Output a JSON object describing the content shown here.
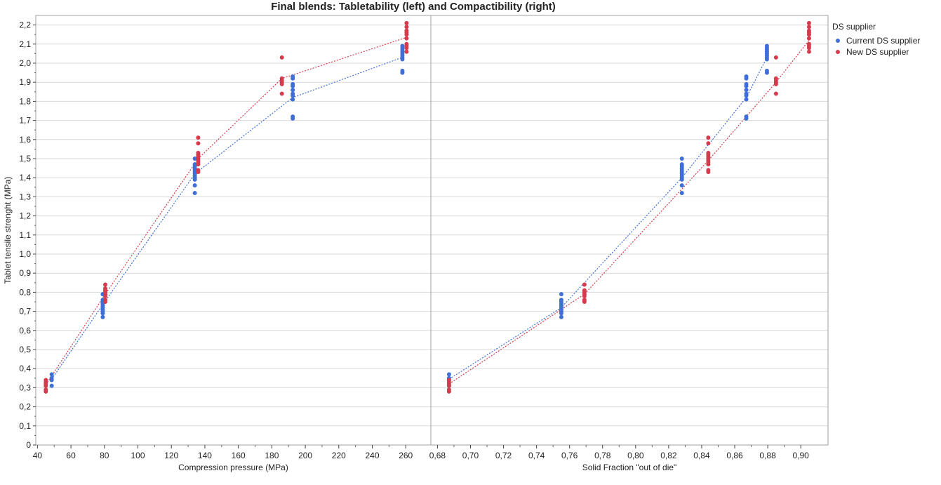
{
  "colors": {
    "current": "#3f6fd6",
    "new": "#d43c4e",
    "grid": "#d9d9d9",
    "frame": "#a0a0a0"
  },
  "chart_data": {
    "title": "Final blends: Tabletability (left) and Compactibility (right)",
    "legend": {
      "title": "DS supplier",
      "placement": "right",
      "entries": [
        {
          "key": "current",
          "label": "Current DS supplier"
        },
        {
          "key": "new",
          "label": "New DS supplier"
        }
      ]
    },
    "ylabel": "Tablet tensile strenght (MPa)",
    "ylim": [
      0,
      2.25
    ],
    "yticks": [
      {
        "v": 0,
        "t": "0"
      },
      {
        "v": 0.1,
        "t": "0,1"
      },
      {
        "v": 0.2,
        "t": "0,2"
      },
      {
        "v": 0.3,
        "t": "0,3"
      },
      {
        "v": 0.4,
        "t": "0,4"
      },
      {
        "v": 0.5,
        "t": "0,5"
      },
      {
        "v": 0.6,
        "t": "0,6"
      },
      {
        "v": 0.7,
        "t": "0,7"
      },
      {
        "v": 0.8,
        "t": "0,8"
      },
      {
        "v": 0.9,
        "t": "0,9"
      },
      {
        "v": 1.0,
        "t": "1,0"
      },
      {
        "v": 1.1,
        "t": "1,1"
      },
      {
        "v": 1.2,
        "t": "1,2"
      },
      {
        "v": 1.3,
        "t": "1,3"
      },
      {
        "v": 1.4,
        "t": "1,4"
      },
      {
        "v": 1.5,
        "t": "1,5"
      },
      {
        "v": 1.6,
        "t": "1,6"
      },
      {
        "v": 1.7,
        "t": "1,7"
      },
      {
        "v": 1.8,
        "t": "1,8"
      },
      {
        "v": 1.9,
        "t": "1,9"
      },
      {
        "v": 2.0,
        "t": "2,0"
      },
      {
        "v": 2.1,
        "t": "2,1"
      },
      {
        "v": 2.2,
        "t": "2,2"
      }
    ],
    "panels": [
      {
        "name": "tabletability",
        "type": "scatter",
        "xlabel": "Compression pressure (MPa)",
        "xlim": [
          39,
          275
        ],
        "xticks": [
          {
            "v": 40,
            "t": "40"
          },
          {
            "v": 60,
            "t": "60"
          },
          {
            "v": 80,
            "t": "80"
          },
          {
            "v": 100,
            "t": "100"
          },
          {
            "v": 120,
            "t": "120"
          },
          {
            "v": 140,
            "t": "140"
          },
          {
            "v": 160,
            "t": "160"
          },
          {
            "v": 180,
            "t": "180"
          },
          {
            "v": 200,
            "t": "200"
          },
          {
            "v": 220,
            "t": "220"
          },
          {
            "v": 240,
            "t": "240"
          },
          {
            "v": 260,
            "t": "260"
          }
        ],
        "series": [
          {
            "key": "current",
            "name": "Current DS supplier",
            "points": [
              [
                48.5,
                0.31
              ],
              [
                48.5,
                0.34
              ],
              [
                48.5,
                0.35
              ],
              [
                48.5,
                0.37
              ],
              [
                79,
                0.67
              ],
              [
                79,
                0.69
              ],
              [
                79,
                0.7
              ],
              [
                79,
                0.71
              ],
              [
                79,
                0.72
              ],
              [
                79,
                0.73
              ],
              [
                79,
                0.74
              ],
              [
                79,
                0.75
              ],
              [
                79,
                0.76
              ],
              [
                79,
                0.79
              ],
              [
                134,
                1.32
              ],
              [
                134,
                1.36
              ],
              [
                134,
                1.39
              ],
              [
                134,
                1.4
              ],
              [
                134,
                1.41
              ],
              [
                134,
                1.42
              ],
              [
                134,
                1.43
              ],
              [
                134,
                1.44
              ],
              [
                134,
                1.45
              ],
              [
                134,
                1.46
              ],
              [
                134,
                1.47
              ],
              [
                134,
                1.5
              ],
              [
                192.5,
                1.71
              ],
              [
                192.5,
                1.72
              ],
              [
                192.5,
                1.81
              ],
              [
                192.5,
                1.83
              ],
              [
                192.5,
                1.84
              ],
              [
                192.5,
                1.86
              ],
              [
                192.5,
                1.88
              ],
              [
                192.5,
                1.89
              ],
              [
                192.5,
                1.92
              ],
              [
                192.5,
                1.93
              ],
              [
                258,
                1.95
              ],
              [
                258,
                1.96
              ],
              [
                258,
                2.02
              ],
              [
                258,
                2.03
              ],
              [
                258,
                2.04
              ],
              [
                258,
                2.05
              ],
              [
                258,
                2.06
              ],
              [
                258,
                2.07
              ],
              [
                258,
                2.08
              ],
              [
                258,
                2.09
              ]
            ],
            "trend": [
              [
                48.5,
                0.345
              ],
              [
                79,
                0.735
              ],
              [
                134,
                1.42
              ],
              [
                192.5,
                1.82
              ],
              [
                258,
                2.03
              ]
            ]
          },
          {
            "key": "new",
            "name": "New DS supplier",
            "points": [
              [
                45,
                0.28
              ],
              [
                45,
                0.29
              ],
              [
                45,
                0.31
              ],
              [
                45,
                0.32
              ],
              [
                45,
                0.33
              ],
              [
                45,
                0.34
              ],
              [
                80.5,
                0.75
              ],
              [
                80.5,
                0.76
              ],
              [
                80.5,
                0.78
              ],
              [
                80.5,
                0.79
              ],
              [
                80.5,
                0.8
              ],
              [
                80.5,
                0.81
              ],
              [
                80.5,
                0.82
              ],
              [
                80.5,
                0.84
              ],
              [
                136,
                1.43
              ],
              [
                136,
                1.44
              ],
              [
                136,
                1.47
              ],
              [
                136,
                1.48
              ],
              [
                136,
                1.49
              ],
              [
                136,
                1.5
              ],
              [
                136,
                1.51
              ],
              [
                136,
                1.52
              ],
              [
                136,
                1.53
              ],
              [
                136,
                1.58
              ],
              [
                136,
                1.61
              ],
              [
                186,
                1.84
              ],
              [
                186,
                1.89
              ],
              [
                186,
                1.9
              ],
              [
                186,
                1.91
              ],
              [
                186,
                1.92
              ],
              [
                186,
                2.03
              ],
              [
                260.5,
                2.06
              ],
              [
                260.5,
                2.08
              ],
              [
                260.5,
                2.09
              ],
              [
                260.5,
                2.1
              ],
              [
                260.5,
                2.13
              ],
              [
                260.5,
                2.15
              ],
              [
                260.5,
                2.16
              ],
              [
                260.5,
                2.17
              ],
              [
                260.5,
                2.19
              ],
              [
                260.5,
                2.21
              ]
            ],
            "trend": [
              [
                45,
                0.315
              ],
              [
                80.5,
                0.79
              ],
              [
                136,
                1.5
              ],
              [
                186,
                1.92
              ],
              [
                260.5,
                2.135
              ]
            ]
          }
        ]
      },
      {
        "name": "compactibility",
        "type": "scatter",
        "xlabel": "Solid Fraction \"out of die\"",
        "xlim": [
          0.676,
          0.9165
        ],
        "xticks": [
          {
            "v": 0.68,
            "t": "0,68"
          },
          {
            "v": 0.7,
            "t": "0,70"
          },
          {
            "v": 0.72,
            "t": "0,72"
          },
          {
            "v": 0.74,
            "t": "0,74"
          },
          {
            "v": 0.76,
            "t": "0,76"
          },
          {
            "v": 0.78,
            "t": "0,78"
          },
          {
            "v": 0.8,
            "t": "0,80"
          },
          {
            "v": 0.82,
            "t": "0,82"
          },
          {
            "v": 0.84,
            "t": "0,84"
          },
          {
            "v": 0.86,
            "t": "0,86"
          },
          {
            "v": 0.88,
            "t": "0,88"
          },
          {
            "v": 0.9,
            "t": "0,90"
          }
        ],
        "series": [
          {
            "key": "current",
            "name": "Current DS supplier",
            "points": [
              [
                0.687,
                0.31
              ],
              [
                0.687,
                0.34
              ],
              [
                0.687,
                0.35
              ],
              [
                0.687,
                0.37
              ],
              [
                0.755,
                0.67
              ],
              [
                0.755,
                0.69
              ],
              [
                0.755,
                0.7
              ],
              [
                0.755,
                0.71
              ],
              [
                0.755,
                0.72
              ],
              [
                0.755,
                0.73
              ],
              [
                0.755,
                0.74
              ],
              [
                0.755,
                0.75
              ],
              [
                0.755,
                0.76
              ],
              [
                0.755,
                0.79
              ],
              [
                0.828,
                1.32
              ],
              [
                0.828,
                1.36
              ],
              [
                0.828,
                1.39
              ],
              [
                0.828,
                1.4
              ],
              [
                0.828,
                1.41
              ],
              [
                0.828,
                1.42
              ],
              [
                0.828,
                1.43
              ],
              [
                0.828,
                1.44
              ],
              [
                0.828,
                1.45
              ],
              [
                0.828,
                1.46
              ],
              [
                0.828,
                1.47
              ],
              [
                0.828,
                1.5
              ],
              [
                0.867,
                1.71
              ],
              [
                0.867,
                1.72
              ],
              [
                0.867,
                1.81
              ],
              [
                0.867,
                1.83
              ],
              [
                0.867,
                1.84
              ],
              [
                0.867,
                1.86
              ],
              [
                0.867,
                1.88
              ],
              [
                0.867,
                1.89
              ],
              [
                0.867,
                1.92
              ],
              [
                0.867,
                1.93
              ],
              [
                0.8795,
                1.95
              ],
              [
                0.8795,
                1.96
              ],
              [
                0.8795,
                2.02
              ],
              [
                0.8795,
                2.03
              ],
              [
                0.8795,
                2.04
              ],
              [
                0.8795,
                2.05
              ],
              [
                0.8795,
                2.06
              ],
              [
                0.8795,
                2.07
              ],
              [
                0.8795,
                2.08
              ],
              [
                0.8795,
                2.09
              ]
            ],
            "trend": [
              [
                0.687,
                0.345
              ],
              [
                0.755,
                0.72
              ],
              [
                0.828,
                1.4
              ],
              [
                0.867,
                1.82
              ],
              [
                0.8795,
                2.03
              ]
            ]
          },
          {
            "key": "new",
            "name": "New DS supplier",
            "points": [
              [
                0.687,
                0.28
              ],
              [
                0.687,
                0.29
              ],
              [
                0.687,
                0.31
              ],
              [
                0.687,
                0.32
              ],
              [
                0.687,
                0.33
              ],
              [
                0.687,
                0.34
              ],
              [
                0.769,
                0.75
              ],
              [
                0.769,
                0.76
              ],
              [
                0.769,
                0.78
              ],
              [
                0.769,
                0.79
              ],
              [
                0.769,
                0.8
              ],
              [
                0.769,
                0.81
              ],
              [
                0.769,
                0.84
              ],
              [
                0.844,
                1.43
              ],
              [
                0.844,
                1.44
              ],
              [
                0.844,
                1.47
              ],
              [
                0.844,
                1.48
              ],
              [
                0.844,
                1.49
              ],
              [
                0.844,
                1.5
              ],
              [
                0.844,
                1.51
              ],
              [
                0.844,
                1.52
              ],
              [
                0.844,
                1.53
              ],
              [
                0.844,
                1.58
              ],
              [
                0.844,
                1.61
              ],
              [
                0.885,
                1.84
              ],
              [
                0.885,
                1.89
              ],
              [
                0.885,
                1.9
              ],
              [
                0.885,
                1.91
              ],
              [
                0.885,
                1.92
              ],
              [
                0.885,
                2.03
              ],
              [
                0.905,
                2.06
              ],
              [
                0.905,
                2.08
              ],
              [
                0.905,
                2.09
              ],
              [
                0.905,
                2.1
              ],
              [
                0.905,
                2.13
              ],
              [
                0.905,
                2.15
              ],
              [
                0.905,
                2.16
              ],
              [
                0.905,
                2.17
              ],
              [
                0.905,
                2.19
              ],
              [
                0.905,
                2.21
              ]
            ],
            "trend": [
              [
                0.687,
                0.32
              ],
              [
                0.769,
                0.79
              ],
              [
                0.844,
                1.49
              ],
              [
                0.885,
                1.9
              ],
              [
                0.905,
                2.12
              ]
            ]
          }
        ]
      }
    ]
  }
}
